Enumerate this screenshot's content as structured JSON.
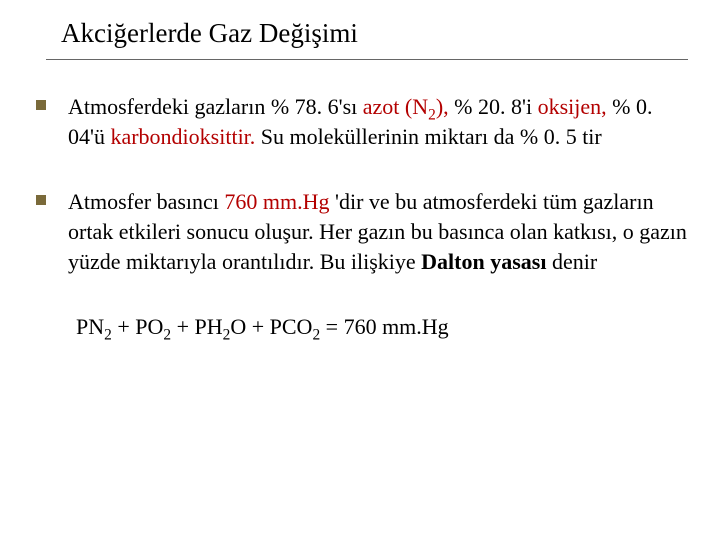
{
  "title": "Akciğerlerde Gaz Değişimi",
  "bullets": {
    "b1": {
      "t1": "Atmosferdeki gazların % 78. 6'sı ",
      "azot_pre": "azot (N",
      "azot_sub": "2",
      "azot_post": "),",
      "t2": " % 20. 8'i ",
      "oksijen": "oksijen,",
      "t3": " % 0. 04'ü ",
      "karb": "karbondioksittir.",
      "t4": " Su moleküllerinin miktarı da % 0. 5 tir"
    },
    "b2": {
      "t1": "Atmosfer basıncı ",
      "mmhg": "760 mm.Hg",
      "t2": " 'dir ve bu atmosferdeki tüm gazların ortak etkileri sonucu oluşur. Her gazın bu basınca olan katkısı, o gazın yüzde miktarıyla orantılıdır. Bu ilişkiye ",
      "dalton": "Dalton yasası",
      "t3": " denir"
    }
  },
  "formula": {
    "pn": "PN",
    "pn_sub": "2",
    "po": "PO",
    "po_sub": "2",
    "ph": "PH",
    "ph_sub": "2",
    "ph_o": "O",
    "pco": "PCO",
    "pco_sub": "2",
    "eq": "760 mm.Hg",
    "plus": "  +  ",
    "equals": "  =  "
  }
}
